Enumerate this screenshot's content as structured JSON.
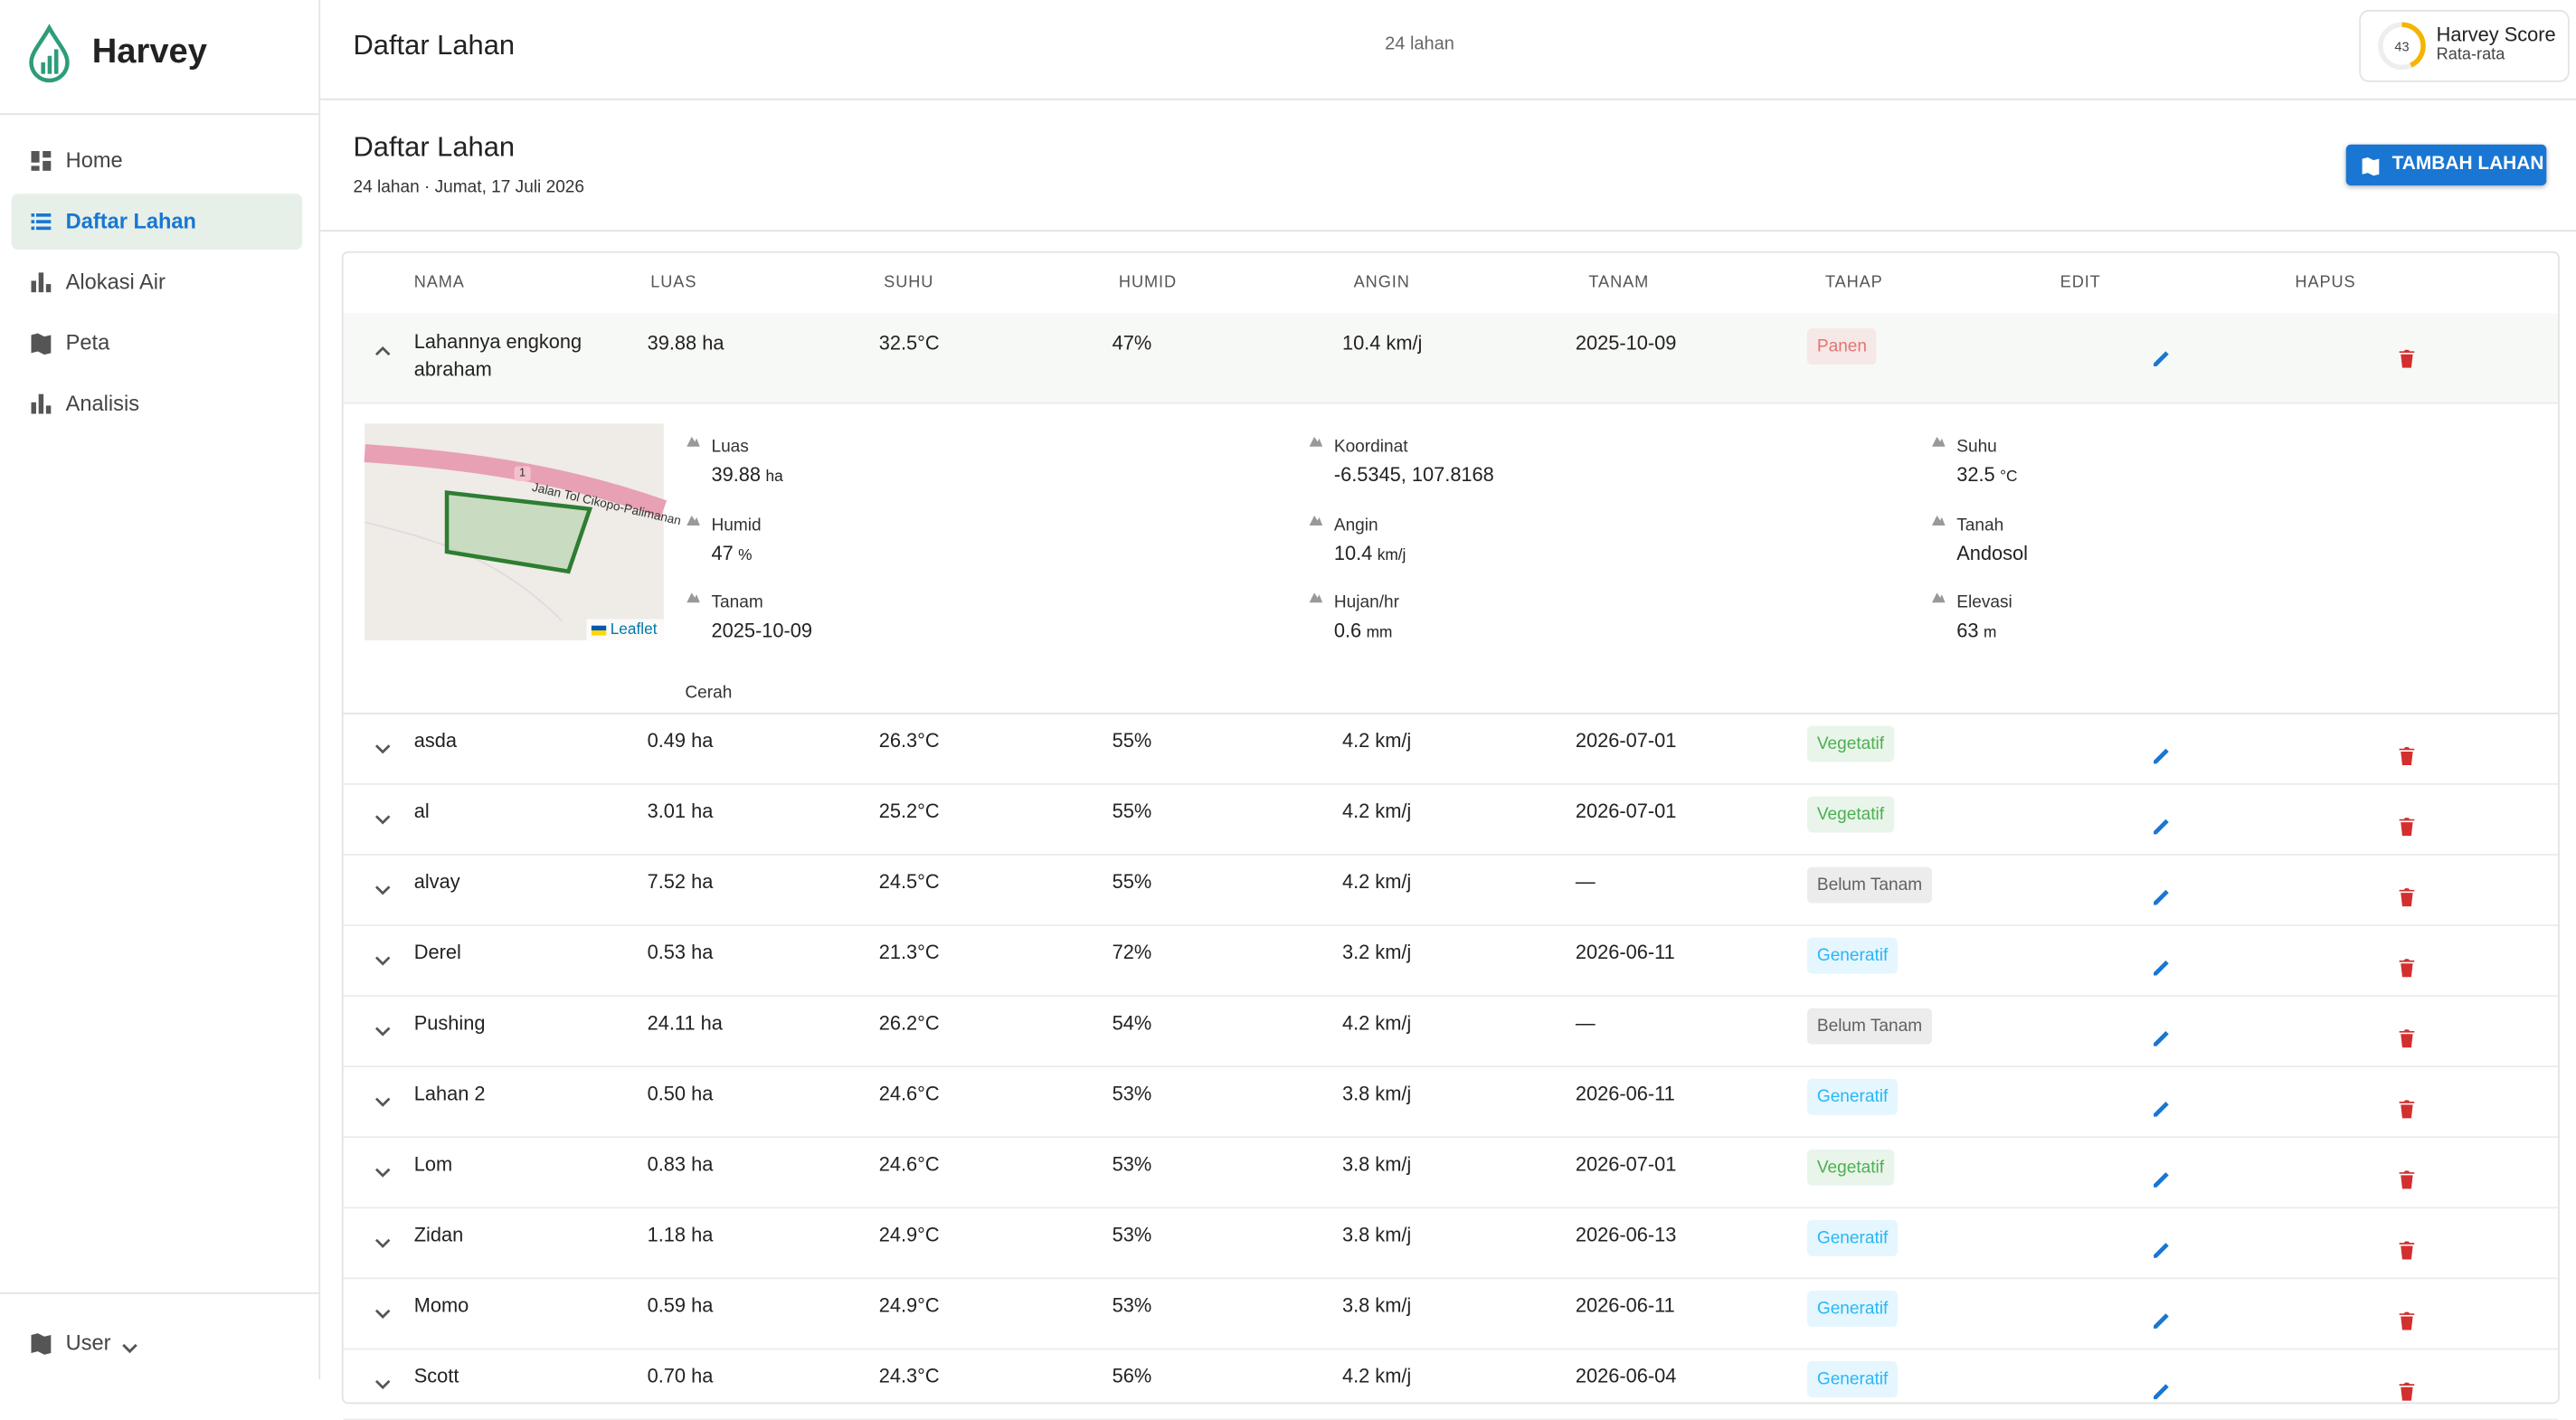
{
  "sidebar": {
    "brand": "Harvey",
    "nav": [
      "Home",
      "Daftar Lahan",
      "Alokasi Air",
      "Peta",
      "Analisis"
    ],
    "active": 1,
    "user": "User"
  },
  "topbar": {
    "title": "Daftar Lahan",
    "count": "24 lahan",
    "score": {
      "value": 43,
      "label": "Harvey Score",
      "sub": "Rata-rata"
    }
  },
  "header": {
    "title": "Daftar Lahan",
    "subtitle": "24 lahan · Jumat, 17 Juli 2026",
    "button": "TAMBAH LAHAN"
  },
  "table": {
    "columns": [
      "NAMA",
      "LUAS",
      "SUHU",
      "HUMID",
      "ANGIN",
      "TANAM",
      "TAHAP",
      "EDIT",
      "HAPUS"
    ],
    "rows": [
      {
        "name": "Lahannya engkong abraham",
        "area": "39.88 ha",
        "temp": "32.5°C",
        "humid": "47%",
        "wind": "10.4 km/j",
        "plant": "2025-10-09",
        "stage": {
          "label": "Panen",
          "color": "#e57373"
        }
      },
      {
        "name": "asda",
        "area": "0.49 ha",
        "temp": "26.3°C",
        "humid": "55%",
        "wind": "4.2 km/j",
        "plant": "2026-07-01",
        "stage": {
          "label": "Vegetatif",
          "color": "#4caf50"
        }
      },
      {
        "name": "al",
        "area": "3.01 ha",
        "temp": "25.2°C",
        "humid": "55%",
        "wind": "4.2 km/j",
        "plant": "2026-07-01",
        "stage": {
          "label": "Vegetatif",
          "color": "#4caf50"
        }
      },
      {
        "name": "alvay",
        "area": "7.52 ha",
        "temp": "24.5°C",
        "humid": "55%",
        "wind": "4.2 km/j",
        "plant": "—",
        "stage": {
          "label": "Belum Tanam",
          "color": "#616161"
        }
      },
      {
        "name": "Derel",
        "area": "0.53 ha",
        "temp": "21.3°C",
        "humid": "72%",
        "wind": "3.2 km/j",
        "plant": "2026-06-11",
        "stage": {
          "label": "Generatif",
          "color": "#29b6f6"
        }
      },
      {
        "name": "Pushing",
        "area": "24.11 ha",
        "temp": "26.2°C",
        "humid": "54%",
        "wind": "4.2 km/j",
        "plant": "—",
        "stage": {
          "label": "Belum Tanam",
          "color": "#616161"
        }
      },
      {
        "name": "Lahan 2",
        "area": "0.50 ha",
        "temp": "24.6°C",
        "humid": "53%",
        "wind": "3.8 km/j",
        "plant": "2026-06-11",
        "stage": {
          "label": "Generatif",
          "color": "#29b6f6"
        }
      },
      {
        "name": "Lom",
        "area": "0.83 ha",
        "temp": "24.6°C",
        "humid": "53%",
        "wind": "3.8 km/j",
        "plant": "2026-07-01",
        "stage": {
          "label": "Vegetatif",
          "color": "#4caf50"
        }
      },
      {
        "name": "Zidan",
        "area": "1.18 ha",
        "temp": "24.9°C",
        "humid": "53%",
        "wind": "3.8 km/j",
        "plant": "2026-06-13",
        "stage": {
          "label": "Generatif",
          "color": "#29b6f6"
        }
      },
      {
        "name": "Momo",
        "area": "0.59 ha",
        "temp": "24.9°C",
        "humid": "53%",
        "wind": "3.8 km/j",
        "plant": "2026-06-11",
        "stage": {
          "label": "Generatif",
          "color": "#29b6f6"
        }
      },
      {
        "name": "Scott",
        "area": "0.70 ha",
        "temp": "24.3°C",
        "humid": "56%",
        "wind": "4.2 km/j",
        "plant": "2026-06-04",
        "stage": {
          "label": "Generatif",
          "color": "#29b6f6"
        }
      }
    ]
  },
  "detail": {
    "road_number": "1",
    "road_label": "Jalan Tol Cikopo-Palimanan",
    "map_attribution": "Leaflet",
    "fields": [
      {
        "label": "Luas",
        "value": "39.88",
        "unit": "ha"
      },
      {
        "label": "Humid",
        "value": "47",
        "unit": "%"
      },
      {
        "label": "Tanam",
        "value": "2025-10-09"
      },
      {
        "label": "Koordinat",
        "value": "-6.5345, 107.8168"
      },
      {
        "label": "Angin",
        "value": "10.4",
        "unit": "km/j"
      },
      {
        "label": "Hujan/hr",
        "value": "0.6",
        "unit": "mm"
      },
      {
        "label": "Suhu",
        "value": "32.5",
        "unit": "°C"
      },
      {
        "label": "Tanah",
        "value": "Andosol"
      },
      {
        "label": "Elevasi",
        "value": "63",
        "unit": "m"
      }
    ],
    "weather": "Cerah"
  }
}
